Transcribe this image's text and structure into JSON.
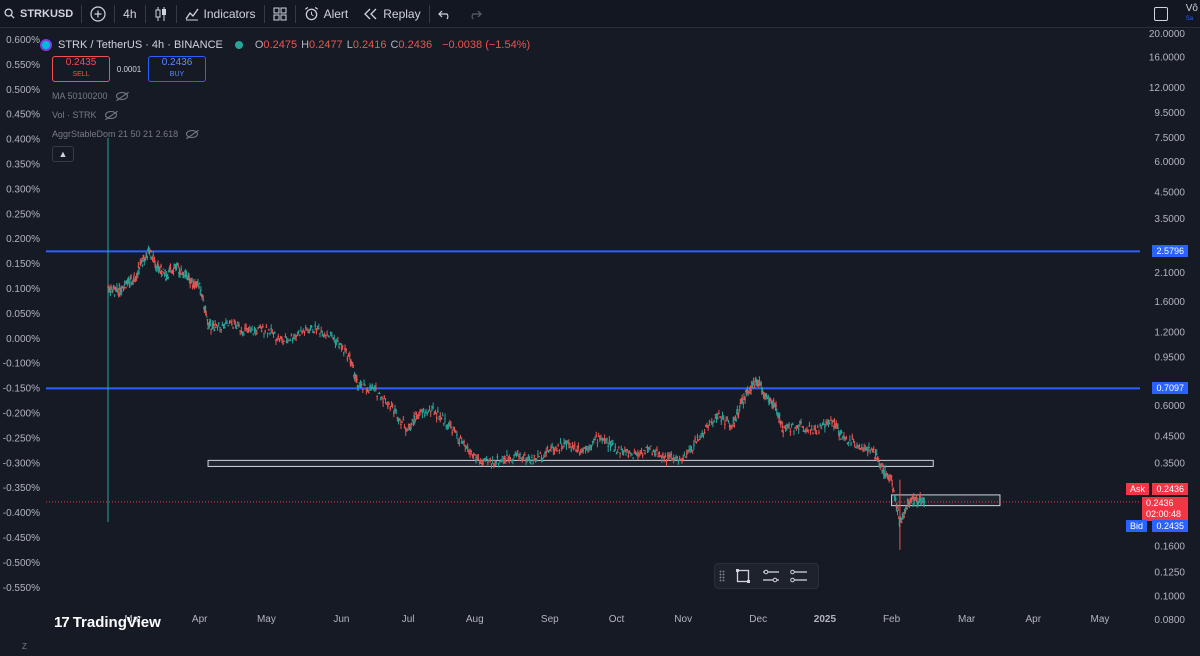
{
  "toolbar": {
    "symbol": "STRKUSD",
    "interval": "4h",
    "indicators_label": "Indicators",
    "alert_label": "Alert",
    "replay_label": "Replay",
    "user_label": "Vô",
    "user_sublabel": "Sa"
  },
  "legend": {
    "pair": "STRK / TetherUS · 4h · BINANCE",
    "ohlc": [
      {
        "k": "O",
        "v": "0.2475"
      },
      {
        "k": "H",
        "v": "0.2477"
      },
      {
        "k": "L",
        "v": "0.2416"
      },
      {
        "k": "C",
        "v": "0.2436"
      }
    ],
    "change": "−0.0038 (−1.54%)",
    "sell_price": "0.2435",
    "sell_label": "SELL",
    "spread": "0.0001",
    "buy_price": "0.2436",
    "buy_label": "BUY",
    "indicators": [
      "MA 50100200",
      "Vol · STRK",
      "AggrStableDom 21 50 21 2.618"
    ]
  },
  "left_axis": [
    "0.600%",
    "0.550%",
    "0.500%",
    "0.450%",
    "0.400%",
    "0.350%",
    "0.300%",
    "0.250%",
    "0.200%",
    "0.150%",
    "0.100%",
    "0.050%",
    "0.000%",
    "-0.100%",
    "-0.150%",
    "-0.200%",
    "-0.250%",
    "-0.300%",
    "-0.350%",
    "-0.400%",
    "-0.450%",
    "-0.500%",
    "-0.550%"
  ],
  "right_axis": [
    {
      "label": "20.0000",
      "value": 20
    },
    {
      "label": "16.0000",
      "value": 16
    },
    {
      "label": "12.0000",
      "value": 12
    },
    {
      "label": "9.5000",
      "value": 9.5
    },
    {
      "label": "7.5000",
      "value": 7.5
    },
    {
      "label": "6.0000",
      "value": 6
    },
    {
      "label": "4.5000",
      "value": 4.5
    },
    {
      "label": "3.5000",
      "value": 3.5
    },
    {
      "label": "2.1000",
      "value": 2.1
    },
    {
      "label": "1.6000",
      "value": 1.6
    },
    {
      "label": "1.2000",
      "value": 1.2
    },
    {
      "label": "0.9500",
      "value": 0.95
    },
    {
      "label": "0.6000",
      "value": 0.6
    },
    {
      "label": "0.4500",
      "value": 0.45
    },
    {
      "label": "0.3500",
      "value": 0.35
    },
    {
      "label": "0.1600",
      "value": 0.16
    },
    {
      "label": "0.1250",
      "value": 0.125
    },
    {
      "label": "0.1000",
      "value": 0.1
    },
    {
      "label": "0.0800",
      "value": 0.08
    }
  ],
  "price_tags": {
    "upper_line": "2.5796",
    "upper_value": 2.5796,
    "lower_line": "0.7097",
    "lower_value": 0.7097,
    "ask_label": "Ask",
    "ask": "0.2436",
    "current": "0.2436",
    "countdown": "02:00:48",
    "bid_label": "Bid",
    "bid": "0.2435"
  },
  "time_axis": [
    {
      "label": "Mar",
      "month": 2024.17
    },
    {
      "label": "Apr",
      "month": 2024.25
    },
    {
      "label": "May",
      "month": 2024.33
    },
    {
      "label": "Jun",
      "month": 2024.42
    },
    {
      "label": "Jul",
      "month": 2024.5
    },
    {
      "label": "Aug",
      "month": 2024.58
    },
    {
      "label": "Sep",
      "month": 2024.67
    },
    {
      "label": "Oct",
      "month": 2024.75
    },
    {
      "label": "Nov",
      "month": 2024.83
    },
    {
      "label": "Dec",
      "month": 2024.92
    },
    {
      "label": "2025",
      "month": 2025.0
    },
    {
      "label": "Feb",
      "month": 2025.08
    },
    {
      "label": "Mar",
      "month": 2025.17
    },
    {
      "label": "Apr",
      "month": 2025.25
    },
    {
      "label": "May",
      "month": 2025.33
    }
  ],
  "price_path": [
    [
      2024.14,
      1.85
    ],
    [
      2024.15,
      1.75
    ],
    [
      2024.16,
      1.9
    ],
    [
      2024.17,
      1.95
    ],
    [
      2024.18,
      2.3
    ],
    [
      2024.19,
      2.6
    ],
    [
      2024.2,
      2.2
    ],
    [
      2024.21,
      2.05
    ],
    [
      2024.22,
      2.25
    ],
    [
      2024.23,
      2.1
    ],
    [
      2024.24,
      1.95
    ],
    [
      2024.25,
      1.85
    ],
    [
      2024.26,
      1.3
    ],
    [
      2024.27,
      1.25
    ],
    [
      2024.29,
      1.3
    ],
    [
      2024.31,
      1.2
    ],
    [
      2024.33,
      1.25
    ],
    [
      2024.35,
      1.1
    ],
    [
      2024.37,
      1.2
    ],
    [
      2024.39,
      1.25
    ],
    [
      2024.41,
      1.15
    ],
    [
      2024.43,
      0.95
    ],
    [
      2024.44,
      0.72
    ],
    [
      2024.46,
      0.7
    ],
    [
      2024.48,
      0.6
    ],
    [
      2024.5,
      0.48
    ],
    [
      2024.51,
      0.55
    ],
    [
      2024.53,
      0.58
    ],
    [
      2024.55,
      0.5
    ],
    [
      2024.57,
      0.4
    ],
    [
      2024.59,
      0.35
    ],
    [
      2024.61,
      0.36
    ],
    [
      2024.63,
      0.38
    ],
    [
      2024.65,
      0.36
    ],
    [
      2024.67,
      0.4
    ],
    [
      2024.69,
      0.42
    ],
    [
      2024.71,
      0.4
    ],
    [
      2024.73,
      0.45
    ],
    [
      2024.75,
      0.4
    ],
    [
      2024.77,
      0.38
    ],
    [
      2024.79,
      0.4
    ],
    [
      2024.81,
      0.37
    ],
    [
      2024.83,
      0.36
    ],
    [
      2024.85,
      0.45
    ],
    [
      2024.87,
      0.55
    ],
    [
      2024.89,
      0.5
    ],
    [
      2024.9,
      0.62
    ],
    [
      2024.91,
      0.72
    ],
    [
      2024.92,
      0.75
    ],
    [
      2024.93,
      0.65
    ],
    [
      2024.94,
      0.6
    ],
    [
      2024.95,
      0.48
    ],
    [
      2024.97,
      0.5
    ],
    [
      2024.99,
      0.48
    ],
    [
      2025.01,
      0.52
    ],
    [
      2025.02,
      0.45
    ],
    [
      2025.04,
      0.42
    ],
    [
      2025.06,
      0.38
    ],
    [
      2025.07,
      0.33
    ],
    [
      2025.08,
      0.3
    ],
    [
      2025.09,
      0.2
    ],
    [
      2025.1,
      0.24
    ],
    [
      2025.11,
      0.25
    ],
    [
      2025.12,
      0.2436
    ]
  ],
  "zones": [
    {
      "x0": 2024.26,
      "x1": 2025.13,
      "top": 0.36,
      "bottom": 0.34
    },
    {
      "x0": 2025.08,
      "x1": 2025.21,
      "top": 0.26,
      "bottom": 0.235
    }
  ],
  "logo_text": "TradingView",
  "axis_corner": "Z"
}
